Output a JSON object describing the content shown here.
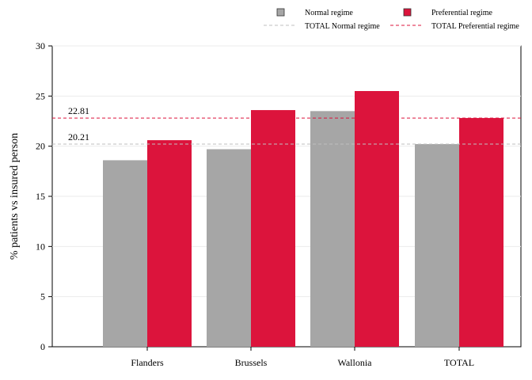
{
  "chart_data": {
    "type": "bar",
    "categories": [
      "Flanders",
      "Brussels",
      "Wallonia",
      "TOTAL"
    ],
    "series": [
      {
        "name": "Normal regime",
        "color": "#a6a6a6",
        "values": [
          18.6,
          19.7,
          23.5,
          20.21
        ]
      },
      {
        "name": "Preferential regime",
        "color": "#dc143c",
        "values": [
          20.6,
          23.6,
          25.5,
          22.81
        ]
      }
    ],
    "reference_lines": [
      {
        "name": "TOTAL Normal regime",
        "value": 20.21,
        "label": "20.21",
        "color": "#bfbfbf",
        "style": "dashed"
      },
      {
        "name": "TOTAL Preferential regime",
        "value": 22.81,
        "label": "22.81",
        "color": "#dc143c",
        "style": "dashed"
      }
    ],
    "xlabel": "",
    "ylabel": "% patients vs insured person",
    "ylim": [
      0,
      30
    ],
    "yticks": [
      0,
      5,
      10,
      15,
      20,
      25,
      30
    ],
    "grid": true,
    "legend_position": "top"
  }
}
